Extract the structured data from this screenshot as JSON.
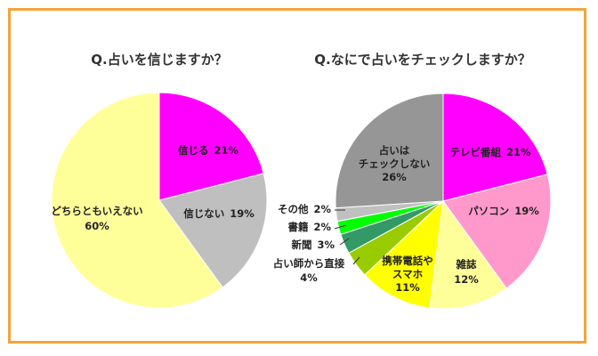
{
  "colors": {
    "border": "#f4a43a",
    "outline": "#ffffff"
  },
  "chart_data": [
    {
      "type": "pie",
      "title": "Q.占いを信じますか？",
      "slices": [
        {
          "label": "信じる",
          "value": 21,
          "value_label": "21%",
          "color": "#ff00ff"
        },
        {
          "label": "信じない",
          "value": 19,
          "value_label": "19%",
          "color": "#bfbfbf"
        },
        {
          "label": "どちらともいえない",
          "value": 60,
          "value_label": "60%",
          "color": "#ffff99"
        }
      ]
    },
    {
      "type": "pie",
      "title": "Q.なにで占いをチェックしますか？",
      "slices": [
        {
          "label": "テレビ番組",
          "value": 21,
          "value_label": "21%",
          "color": "#ff00ff"
        },
        {
          "label": "パソコン",
          "value": 19,
          "value_label": "19%",
          "color": "#ff99cc"
        },
        {
          "label": "雑誌",
          "value": 12,
          "value_label": "12%",
          "color": "#ffff99"
        },
        {
          "label": "携帯電話やスマホ",
          "value": 11,
          "value_label": "11%",
          "color": "#ffff00"
        },
        {
          "label": "占い師から直接",
          "value": 4,
          "value_label": "4%",
          "color": "#99cc00"
        },
        {
          "label": "新聞",
          "value": 3,
          "value_label": "3%",
          "color": "#339966"
        },
        {
          "label": "書籍",
          "value": 2,
          "value_label": "2%",
          "color": "#00ff00"
        },
        {
          "label": "その他",
          "value": 2,
          "value_label": "2%",
          "color": "#c0c0c0"
        },
        {
          "label": "占いはチェックしない",
          "value": 26,
          "value_label": "26%",
          "color": "#969696"
        }
      ]
    }
  ]
}
